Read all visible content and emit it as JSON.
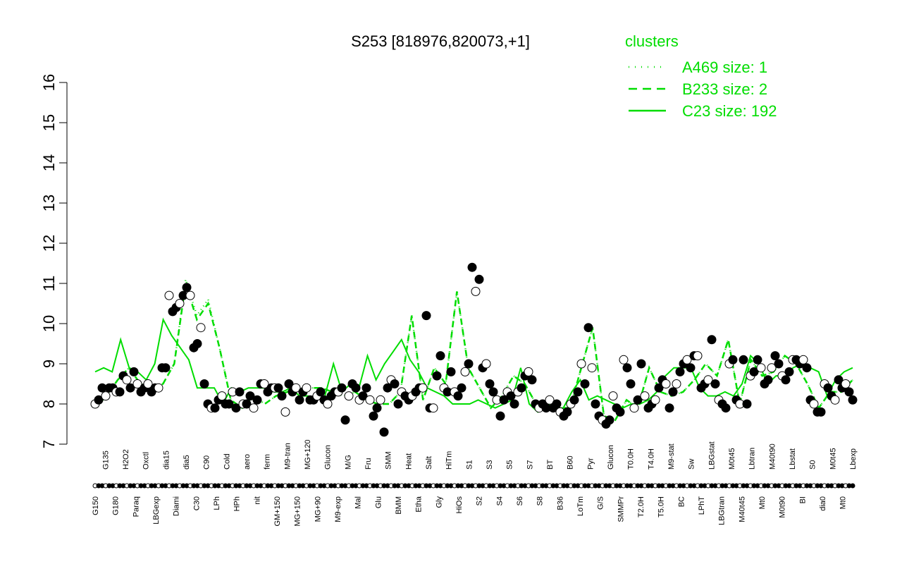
{
  "chart_data": {
    "type": "line",
    "title": "S253 [818976,820073,+1]",
    "xlabel": "",
    "ylabel": "",
    "ylim": [
      7,
      16
    ],
    "yticks": [
      7,
      8,
      9,
      10,
      11,
      12,
      13,
      14,
      15,
      16
    ],
    "x_tick_labels": [
      "G150",
      "G135",
      "G180",
      "H2O2",
      "Paraq",
      "Oxctl",
      "LBGexp",
      "dia15",
      "Diami",
      "dia5",
      "C30",
      "C90",
      "LPh",
      "Cold",
      "HPh",
      "aero",
      "nit",
      "ferm",
      "GM+150",
      "M9-tran",
      "MG+150",
      "MG+120",
      "MG+90",
      "Glucon",
      "M9-exp",
      "M/G",
      "Mal",
      "Fru",
      "Glu",
      "SMM",
      "BMM",
      "Heat",
      "Etha",
      "Salt",
      "Gly",
      "HiTm",
      "HiOs",
      "S1",
      "S2",
      "S3",
      "S4",
      "S5",
      "S6",
      "S7",
      "S8",
      "BT",
      "B36",
      "B60",
      "LoTm",
      "Pyr",
      "G/S",
      "Glucon",
      "SMMPr",
      "T0.0H",
      "T2.0H",
      "T4.0H",
      "T5.0H",
      "M9-stat",
      "BC",
      "Sw",
      "LPhT",
      "LBGstat",
      "LBGtran",
      "M0t45",
      "M40t45",
      "Lbtran",
      "Mt0",
      "M40t90",
      "M0t90",
      "Lbstat",
      "BI",
      "S0",
      "dia0",
      "M0t45",
      "Mt0",
      "Lbexp"
    ],
    "legend": {
      "title": "clusters",
      "placement": "top-right",
      "entries": [
        {
          "label": "A469 size: 1",
          "style": "dotted"
        },
        {
          "label": "B233 size: 2",
          "style": "dashed"
        },
        {
          "label": "C23 size: 192",
          "style": "solid"
        }
      ]
    },
    "colors": {
      "line": "#00dd00",
      "axis": "#000000",
      "legend": "#00dd00"
    },
    "points": [
      8.0,
      8.1,
      8.4,
      8.2,
      8.4,
      8.4,
      8.3,
      8.3,
      8.7,
      8.6,
      8.4,
      8.8,
      8.5,
      8.3,
      8.4,
      8.5,
      8.3,
      8.4,
      8.4,
      8.9,
      8.9,
      10.7,
      10.3,
      10.4,
      10.5,
      10.7,
      10.9,
      10.7,
      9.4,
      9.5,
      9.9,
      8.5,
      8.0,
      7.9,
      7.9,
      8.1,
      8.2,
      8.0,
      8.0,
      8.3,
      7.9,
      8.3,
      8.0,
      8.0,
      8.2,
      7.9,
      8.1,
      8.5,
      8.5,
      8.3,
      8.4,
      8.4,
      8.4,
      8.2,
      7.8,
      8.5,
      8.3,
      8.4,
      8.1,
      8.3,
      8.4,
      8.1,
      8.1,
      8.2,
      8.3,
      8.1,
      8.0,
      8.2,
      8.3,
      8.3,
      8.4,
      7.6,
      8.2,
      8.5,
      8.4,
      8.1,
      8.2,
      8.4,
      8.1,
      7.7,
      7.9,
      8.1,
      7.3,
      8.4,
      8.6,
      8.5,
      8.0,
      8.3,
      8.2,
      8.1,
      8.2,
      8.3,
      8.4,
      8.4,
      10.2,
      7.9,
      7.9,
      8.7,
      9.2,
      8.4,
      8.3,
      8.8,
      8.3,
      8.2,
      8.4,
      8.8,
      9.0,
      11.4,
      10.8,
      11.1,
      8.9,
      9.0,
      8.5,
      8.3,
      8.1,
      7.7,
      8.1,
      8.3,
      8.2,
      8.0,
      8.3,
      8.4,
      8.7,
      8.8,
      8.6,
      8.0,
      7.9,
      8.0,
      7.9,
      8.1,
      7.9,
      8.0,
      7.8,
      7.7,
      7.8,
      8.0,
      8.1,
      8.3,
      9.0,
      8.5,
      9.9,
      8.9,
      8.0,
      7.7,
      7.6,
      7.5,
      7.6,
      8.2,
      7.9,
      7.8,
      9.1,
      8.9,
      8.5,
      7.9,
      8.1,
      9.0,
      8.2,
      7.9,
      8.0,
      8.1,
      8.4,
      8.6,
      8.5,
      7.9,
      8.3,
      8.5,
      8.8,
      9.0,
      9.1,
      8.9,
      9.2,
      9.2,
      8.4,
      8.5,
      8.6,
      9.6,
      8.5,
      8.1,
      8.0,
      7.9,
      9.0,
      9.1,
      8.1,
      8.0,
      9.1,
      8.0,
      8.7,
      8.8,
      9.1,
      8.9,
      8.5,
      8.6,
      8.9,
      9.2,
      9.0,
      8.7,
      8.6,
      8.8,
      9.1,
      9.1,
      9.0,
      9.1,
      8.9,
      8.1,
      8.0,
      7.8,
      7.8,
      8.5,
      8.4,
      8.2,
      8.1,
      8.6,
      8.4,
      8.5,
      8.3,
      8.1
    ],
    "series": [
      {
        "style": "solid",
        "values": [
          8.8,
          8.9,
          8.8,
          9.6,
          8.9,
          8.8,
          8.6,
          9.0,
          10.1,
          9.7,
          9.4,
          9.1,
          8.4,
          8.4,
          8.4,
          8.0,
          8.4,
          8.3,
          8.4,
          8.4,
          8.4,
          8.3,
          8.3,
          8.4,
          8.2,
          8.2,
          8.1,
          8.2,
          9.0,
          8.3,
          8.5,
          8.4,
          9.2,
          8.6,
          9.0,
          9.3,
          9.6,
          9.1,
          8.8,
          8.4,
          8.3,
          8.2,
          8.0,
          8.0,
          8.0,
          8.1,
          8.0,
          7.9,
          8.0,
          8.1,
          8.9,
          8.0,
          7.8,
          8.0,
          7.9,
          7.9,
          8.3,
          8.6,
          8.1,
          8.2,
          8.1,
          8.0,
          7.9,
          8.0,
          8.0,
          8.1,
          8.3,
          8.7,
          8.9,
          8.9,
          8.9,
          8.4,
          8.2,
          8.2,
          8.3,
          8.2,
          8.5,
          9.2,
          9.0,
          8.5,
          8.7,
          8.7,
          8.9,
          9.0,
          8.9,
          8.8,
          8.2,
          8.6,
          8.8,
          8.9
        ]
      },
      {
        "style": "dashed",
        "values": [
          7.9,
          8.2,
          8.6,
          8.9,
          8.5,
          8.4,
          8.5,
          9.0,
          11.0,
          10.1,
          10.5,
          9.4,
          8.1,
          7.9,
          8.2,
          8.0,
          8.2,
          8.3,
          8.4,
          8.4,
          8.4,
          8.3,
          8.2,
          8.3,
          8.1,
          8.0,
          8.0,
          8.3,
          10.2,
          8.1,
          8.9,
          8.5,
          10.8,
          8.9,
          8.4,
          7.9,
          8.2,
          8.7,
          8.5,
          8.0,
          8.0,
          7.9,
          7.9,
          8.9,
          9.9,
          7.7,
          7.6,
          8.1,
          7.9,
          8.9,
          8.3,
          8.2,
          8.3,
          8.6,
          9.0,
          8.7,
          9.6,
          8.0,
          9.1,
          8.7,
          8.8,
          9.2,
          9.0,
          8.5,
          7.9,
          8.3,
          8.3,
          8.6
        ]
      },
      {
        "style": "dotted",
        "values": [
          7.9,
          8.2,
          8.6,
          8.9,
          8.5,
          8.4,
          8.5,
          9.0,
          11.1,
          10.2,
          10.6,
          9.4,
          8.1,
          7.9,
          8.2,
          8.0,
          8.2,
          8.3,
          8.4,
          8.4,
          8.4,
          8.3,
          8.2,
          8.3,
          8.1,
          8.0,
          8.0,
          8.3,
          10.2,
          8.1,
          8.9,
          8.5,
          10.8,
          8.9,
          8.4,
          7.9,
          8.2,
          8.7,
          8.5,
          8.0,
          8.0,
          7.9,
          7.9,
          8.9,
          9.9,
          7.7,
          7.6,
          8.1,
          7.9,
          8.9,
          8.3,
          8.2,
          8.3,
          8.6,
          9.0,
          8.7,
          9.6,
          8.0,
          9.1,
          8.7,
          8.8,
          9.2,
          9.0,
          8.5,
          7.9,
          8.3,
          8.3,
          8.6
        ]
      }
    ]
  }
}
